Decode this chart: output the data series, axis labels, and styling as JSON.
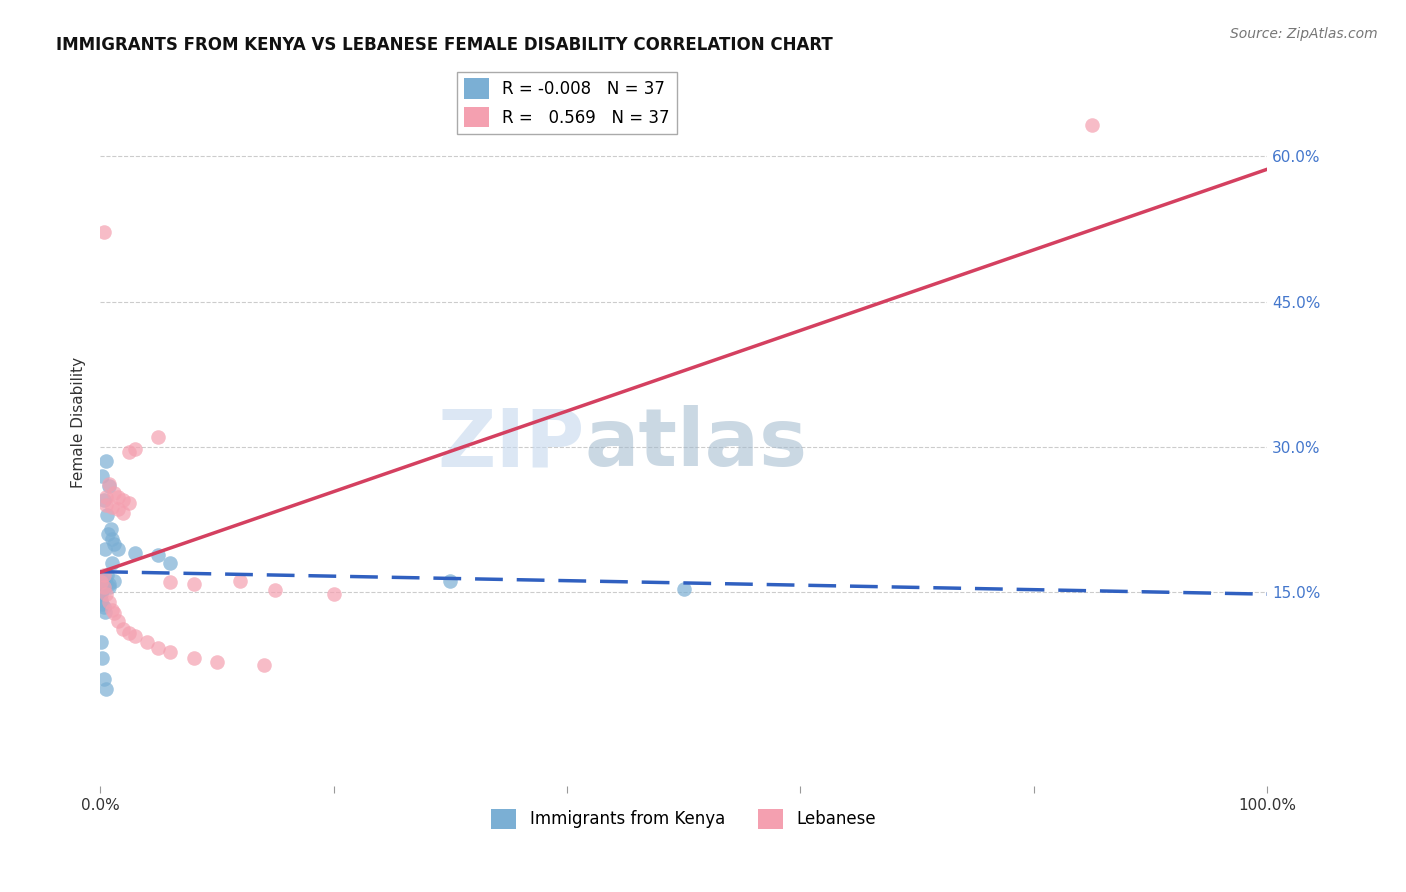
{
  "title": "IMMIGRANTS FROM KENYA VS LEBANESE FEMALE DISABILITY CORRELATION CHART",
  "source": "Source: ZipAtlas.com",
  "ylabel": "Female Disability",
  "xlim": [
    0,
    1.0
  ],
  "ylim": [
    -0.05,
    0.7
  ],
  "x_tick_positions": [
    0.0,
    0.2,
    0.4,
    0.6,
    0.8,
    1.0
  ],
  "x_tick_labels": [
    "0.0%",
    "",
    "",
    "",
    "",
    "100.0%"
  ],
  "y_ticks": [
    0.15,
    0.3,
    0.45,
    0.6
  ],
  "y_tick_labels": [
    "15.0%",
    "30.0%",
    "45.0%",
    "60.0%"
  ],
  "grid_color": "#cccccc",
  "background_color": "#ffffff",
  "legend_R_kenya": "-0.008",
  "legend_N_kenya": "37",
  "legend_R_lebanese": "0.569",
  "legend_N_lebanese": "37",
  "kenya_color": "#7bafd4",
  "lebanese_color": "#f4a0b0",
  "kenya_trend_color": "#3060c0",
  "lebanese_trend_color": "#d44060",
  "kenya_scatter_x": [
    0.002,
    0.005,
    0.008,
    0.003,
    0.006,
    0.009,
    0.012,
    0.004,
    0.007,
    0.01,
    0.015,
    0.001,
    0.003,
    0.005,
    0.008,
    0.002,
    0.004,
    0.006,
    0.01,
    0.001,
    0.002,
    0.003,
    0.03,
    0.06,
    0.001,
    0.002,
    0.003,
    0.004,
    0.008,
    0.012,
    0.3,
    0.5,
    0.001,
    0.002,
    0.003,
    0.005,
    0.05
  ],
  "kenya_scatter_y": [
    0.27,
    0.285,
    0.26,
    0.245,
    0.23,
    0.215,
    0.2,
    0.195,
    0.21,
    0.205,
    0.195,
    0.165,
    0.162,
    0.158,
    0.155,
    0.16,
    0.165,
    0.168,
    0.18,
    0.148,
    0.152,
    0.155,
    0.19,
    0.18,
    0.142,
    0.138,
    0.135,
    0.13,
    0.158,
    0.162,
    0.162,
    0.153,
    0.098,
    0.082,
    0.06,
    0.05,
    0.188
  ],
  "lebanese_scatter_x": [
    0.001,
    0.003,
    0.005,
    0.008,
    0.01,
    0.012,
    0.015,
    0.02,
    0.025,
    0.03,
    0.04,
    0.05,
    0.06,
    0.08,
    0.1,
    0.14,
    0.005,
    0.008,
    0.012,
    0.015,
    0.02,
    0.025,
    0.03,
    0.05,
    0.06,
    0.08,
    0.005,
    0.01,
    0.015,
    0.02,
    0.025,
    0.003,
    0.15,
    0.2,
    0.85,
    0.003,
    0.12
  ],
  "lebanese_scatter_y": [
    0.16,
    0.155,
    0.148,
    0.14,
    0.132,
    0.128,
    0.12,
    0.112,
    0.108,
    0.105,
    0.098,
    0.092,
    0.088,
    0.082,
    0.078,
    0.075,
    0.248,
    0.262,
    0.252,
    0.248,
    0.245,
    0.242,
    0.298,
    0.31,
    0.16,
    0.158,
    0.24,
    0.238,
    0.236,
    0.232,
    0.295,
    0.522,
    0.152,
    0.148,
    0.632,
    0.168,
    0.162
  ],
  "watermark_zip": "ZIP",
  "watermark_atlas": "atlas"
}
